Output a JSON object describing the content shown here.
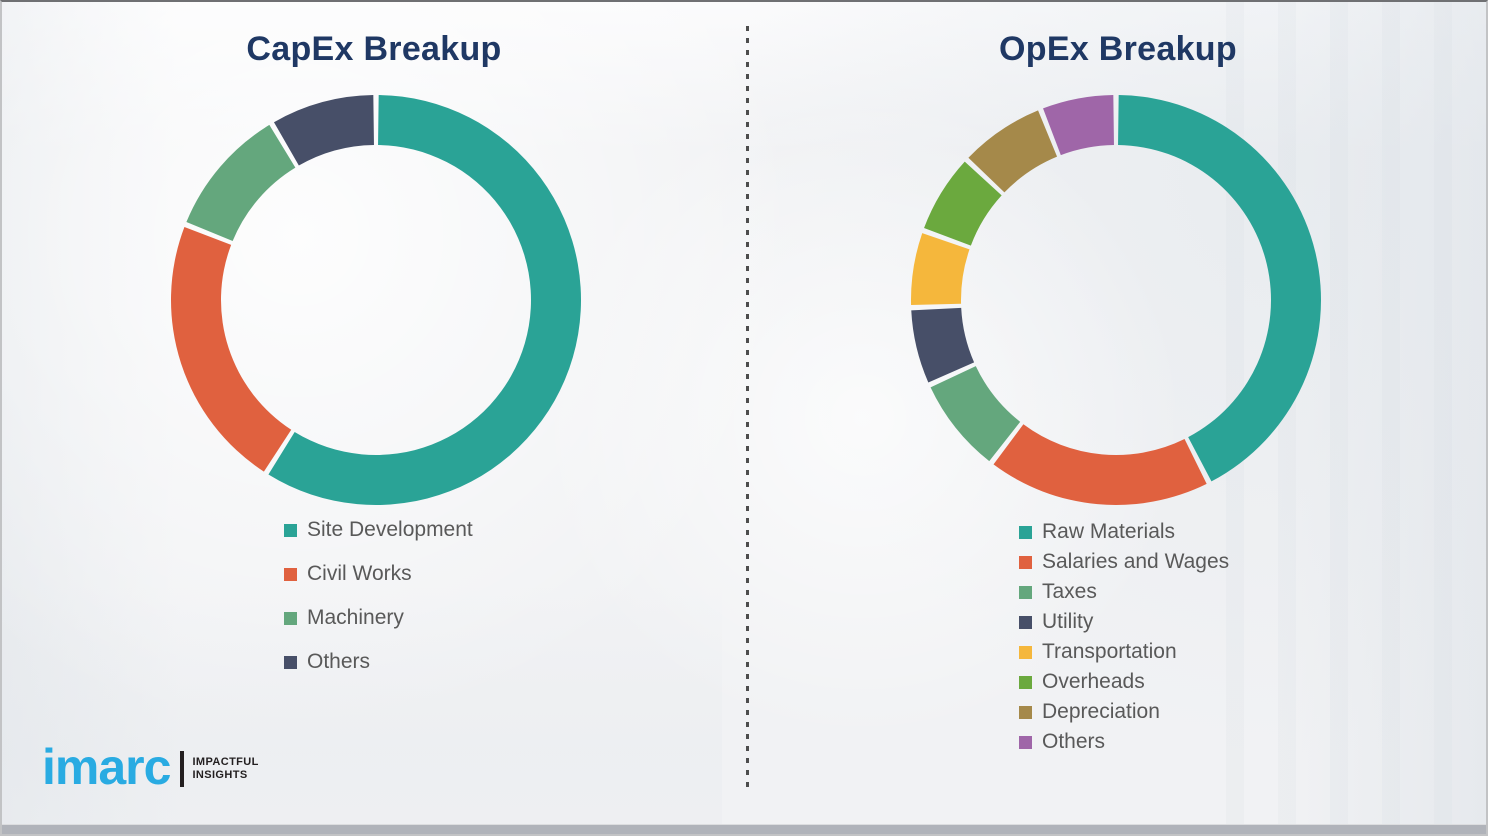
{
  "chart_data": [
    {
      "type": "pie",
      "subtype": "donut",
      "title": "CapEx Breakup",
      "labels": [
        "Site Development",
        "Civil Works",
        "Machinery",
        "Others"
      ],
      "values": [
        59,
        22,
        10.5,
        8.5
      ],
      "colors": [
        "#2AA396",
        "#E0613F",
        "#64A77D",
        "#474F68"
      ],
      "values_unit": "percent_estimated_from_arc_angles",
      "data_labels_shown": false,
      "start_angle_deg": 0,
      "direction": "clockwise",
      "legend_position": "below-left"
    },
    {
      "type": "pie",
      "subtype": "donut",
      "title": "OpEx Breakup",
      "labels": [
        "Raw Materials",
        "Salaries and Wages",
        "Taxes",
        "Utility",
        "Transportation",
        "Overheads",
        "Depreciation",
        "Others"
      ],
      "values": [
        42.5,
        17.9,
        7.8,
        6.2,
        6.1,
        6.5,
        7,
        6
      ],
      "colors": [
        "#2AA396",
        "#E0613F",
        "#64A77D",
        "#474F68",
        "#F5B73C",
        "#6BA93E",
        "#A5894A",
        "#9F66A8"
      ],
      "values_unit": "percent_estimated_from_arc_angles",
      "data_labels_shown": false,
      "start_angle_deg": 0,
      "direction": "clockwise",
      "legend_position": "below-left"
    }
  ],
  "branding": {
    "logo_text": "imarc",
    "tagline_line1": "IMPACTFUL",
    "tagline_line2": "INSIGHTS",
    "logo_color": "#29ABE2"
  },
  "ui_colors": {
    "title": "#1F3864",
    "legend_text": "#595959",
    "divider": "#4D4D4D",
    "background": "#F1F2F4",
    "bottom_band": "#B0B3BA"
  }
}
